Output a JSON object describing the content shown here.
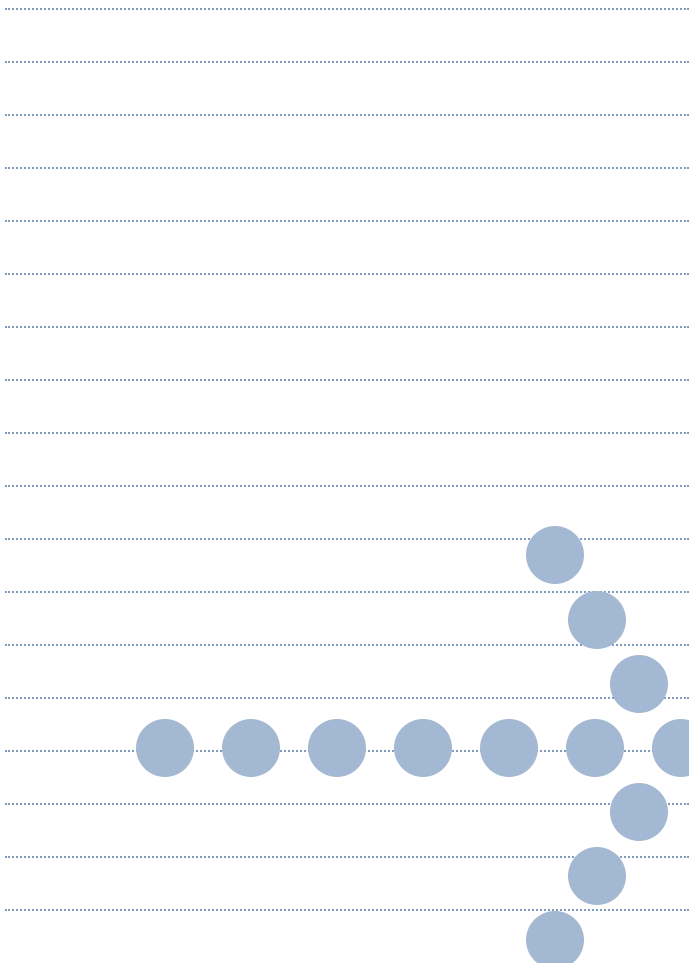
{
  "background_color": "#ffffff",
  "rule_color": "#7f9cbc",
  "dot_color": "#a3b8d2",
  "rule_count": 18,
  "arrow_icon": "dotted-arrow-right-icon"
}
